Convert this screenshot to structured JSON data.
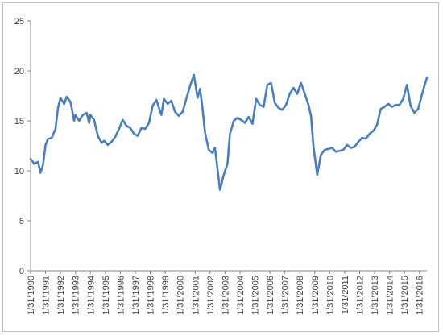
{
  "chart_data": {
    "type": "line",
    "title": "",
    "xlabel": "",
    "ylabel": "",
    "ylim": [
      0,
      25
    ],
    "yticks": [
      0,
      5,
      10,
      15,
      20,
      25
    ],
    "xlim": [
      "1990-01-31",
      "2016-07-31"
    ],
    "x_tick_labels": [
      "1/31/1990",
      "1/31/1991",
      "1/31/1992",
      "1/31/1993",
      "1/31/1994",
      "1/31/1995",
      "1/31/1996",
      "1/31/1997",
      "1/31/1998",
      "1/31/1999",
      "1/31/2000",
      "1/31/2001",
      "1/31/2002",
      "1/31/2003",
      "1/31/2004",
      "1/31/2005",
      "1/31/2006",
      "1/31/2007",
      "1/31/2008",
      "1/31/2009",
      "1/31/2010",
      "1/31/2011",
      "1/31/2012",
      "1/31/2013",
      "1/31/2014",
      "1/31/2015",
      "1/31/2016"
    ],
    "grid": false,
    "legend": "none",
    "line_color": "#4a7ebb",
    "axis_color": "#868686",
    "series": [
      {
        "values": [
          [
            "1990-01-31",
            11.2
          ],
          [
            "1990-04-30",
            10.7
          ],
          [
            "1990-07-31",
            10.9
          ],
          [
            "1990-09-30",
            9.8
          ],
          [
            "1990-11-30",
            10.6
          ],
          [
            "1991-01-31",
            12.6
          ],
          [
            "1991-03-31",
            13.2
          ],
          [
            "1991-06-30",
            13.3
          ],
          [
            "1991-09-30",
            14.2
          ],
          [
            "1991-11-30",
            16.3
          ],
          [
            "1992-01-31",
            17.3
          ],
          [
            "1992-04-30",
            16.7
          ],
          [
            "1992-06-30",
            17.4
          ],
          [
            "1992-09-30",
            16.9
          ],
          [
            "1992-12-31",
            15.0
          ],
          [
            "1993-01-31",
            15.6
          ],
          [
            "1993-04-30",
            15.0
          ],
          [
            "1993-07-31",
            15.6
          ],
          [
            "1993-10-31",
            15.8
          ],
          [
            "1993-12-31",
            14.8
          ],
          [
            "1994-01-31",
            15.6
          ],
          [
            "1994-04-30",
            15.1
          ],
          [
            "1994-07-31",
            13.5
          ],
          [
            "1994-10-31",
            12.8
          ],
          [
            "1994-12-31",
            13.0
          ],
          [
            "1995-03-31",
            12.6
          ],
          [
            "1995-06-30",
            12.9
          ],
          [
            "1995-09-30",
            13.4
          ],
          [
            "1995-12-31",
            14.2
          ],
          [
            "1996-03-31",
            15.1
          ],
          [
            "1996-06-30",
            14.5
          ],
          [
            "1996-09-30",
            14.3
          ],
          [
            "1996-12-31",
            13.7
          ],
          [
            "1997-03-31",
            13.5
          ],
          [
            "1997-06-30",
            14.3
          ],
          [
            "1997-09-30",
            14.2
          ],
          [
            "1997-12-31",
            14.8
          ],
          [
            "1998-03-31",
            16.5
          ],
          [
            "1998-06-30",
            17.1
          ],
          [
            "1998-08-31",
            16.3
          ],
          [
            "1998-10-31",
            15.6
          ],
          [
            "1998-12-31",
            17.2
          ],
          [
            "1999-03-31",
            16.7
          ],
          [
            "1999-06-30",
            17.0
          ],
          [
            "1999-09-30",
            15.9
          ],
          [
            "1999-12-31",
            15.5
          ],
          [
            "2000-03-31",
            15.9
          ],
          [
            "2000-06-30",
            17.2
          ],
          [
            "2000-09-30",
            18.5
          ],
          [
            "2000-12-31",
            19.6
          ],
          [
            "2001-03-31",
            17.3
          ],
          [
            "2001-05-31",
            18.2
          ],
          [
            "2001-07-31",
            16.2
          ],
          [
            "2001-09-30",
            13.8
          ],
          [
            "2001-12-31",
            12.1
          ],
          [
            "2002-03-31",
            11.8
          ],
          [
            "2002-05-31",
            12.3
          ],
          [
            "2002-07-31",
            10.2
          ],
          [
            "2002-09-30",
            8.1
          ],
          [
            "2002-12-31",
            9.6
          ],
          [
            "2003-03-31",
            10.7
          ],
          [
            "2003-05-31",
            13.7
          ],
          [
            "2003-08-31",
            15.0
          ],
          [
            "2003-11-30",
            15.3
          ],
          [
            "2004-02-29",
            15.1
          ],
          [
            "2004-05-31",
            14.8
          ],
          [
            "2004-08-31",
            15.4
          ],
          [
            "2004-11-30",
            14.7
          ],
          [
            "2005-02-28",
            17.2
          ],
          [
            "2005-05-31",
            16.6
          ],
          [
            "2005-08-31",
            16.4
          ],
          [
            "2005-11-30",
            18.6
          ],
          [
            "2006-02-28",
            18.8
          ],
          [
            "2006-05-31",
            16.8
          ],
          [
            "2006-08-31",
            16.3
          ],
          [
            "2006-11-30",
            16.1
          ],
          [
            "2007-02-28",
            16.6
          ],
          [
            "2007-05-31",
            17.7
          ],
          [
            "2007-08-31",
            18.3
          ],
          [
            "2007-11-30",
            17.7
          ],
          [
            "2008-02-29",
            18.8
          ],
          [
            "2008-05-31",
            17.7
          ],
          [
            "2008-08-31",
            16.6
          ],
          [
            "2008-10-31",
            15.5
          ],
          [
            "2008-12-31",
            12.4
          ],
          [
            "2009-02-28",
            10.6
          ],
          [
            "2009-03-31",
            9.6
          ],
          [
            "2009-06-30",
            11.6
          ],
          [
            "2009-09-30",
            12.1
          ],
          [
            "2009-12-31",
            12.2
          ],
          [
            "2010-03-31",
            12.3
          ],
          [
            "2010-06-30",
            11.9
          ],
          [
            "2010-09-30",
            12.0
          ],
          [
            "2010-12-31",
            12.1
          ],
          [
            "2011-03-31",
            12.6
          ],
          [
            "2011-06-30",
            12.3
          ],
          [
            "2011-09-30",
            12.4
          ],
          [
            "2011-12-31",
            12.9
          ],
          [
            "2012-03-31",
            13.3
          ],
          [
            "2012-06-30",
            13.2
          ],
          [
            "2012-09-30",
            13.7
          ],
          [
            "2012-12-31",
            14.0
          ],
          [
            "2013-03-31",
            14.6
          ],
          [
            "2013-06-30",
            16.2
          ],
          [
            "2013-09-30",
            16.4
          ],
          [
            "2013-12-31",
            16.7
          ],
          [
            "2014-03-31",
            16.4
          ],
          [
            "2014-06-30",
            16.6
          ],
          [
            "2014-09-30",
            16.6
          ],
          [
            "2014-12-31",
            17.2
          ],
          [
            "2015-03-31",
            18.6
          ],
          [
            "2015-06-30",
            16.5
          ],
          [
            "2015-09-30",
            15.8
          ],
          [
            "2015-12-31",
            16.2
          ],
          [
            "2016-03-31",
            17.6
          ],
          [
            "2016-05-31",
            18.5
          ],
          [
            "2016-07-31",
            19.3
          ]
        ]
      }
    ]
  }
}
